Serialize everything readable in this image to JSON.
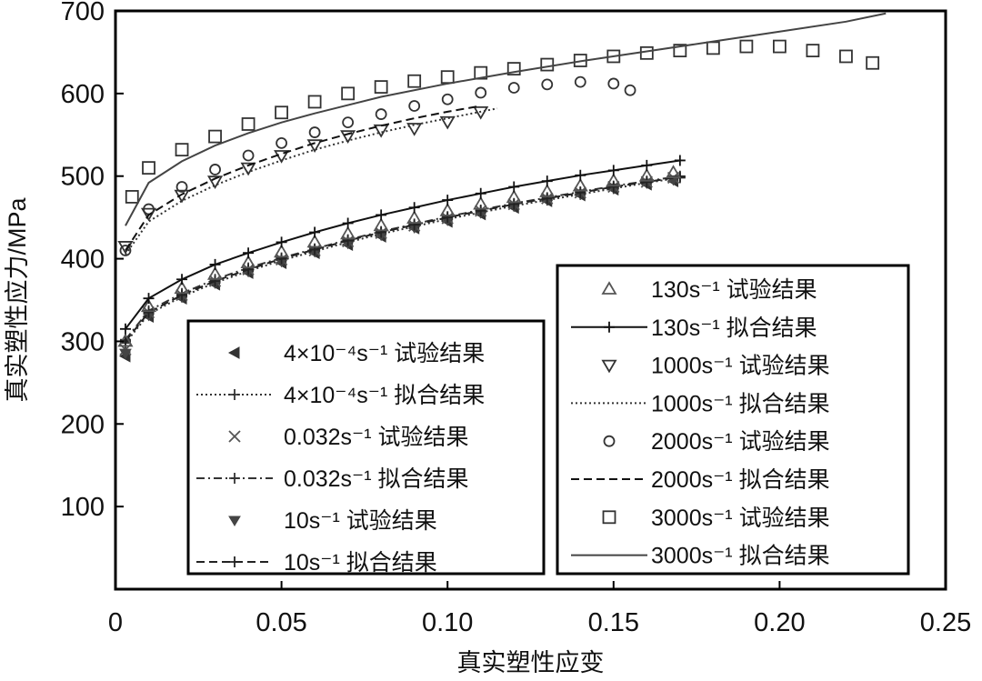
{
  "chart_data": {
    "type": "scatter",
    "title": "",
    "xlabel": "真实塑性应变",
    "ylabel": "真实塑性应力/MPa",
    "xlim": [
      0,
      0.25
    ],
    "ylim": [
      0,
      700
    ],
    "xticks": [
      {
        "value": 0,
        "label": "0"
      },
      {
        "value": 0.05,
        "label": "0.05"
      },
      {
        "value": 0.1,
        "label": "0.10"
      },
      {
        "value": 0.15,
        "label": "0.15"
      },
      {
        "value": 0.2,
        "label": "0.20"
      },
      {
        "value": 0.25,
        "label": "0.25"
      }
    ],
    "yticks": [
      {
        "value": 100,
        "label": "100"
      },
      {
        "value": 200,
        "label": "200"
      },
      {
        "value": 300,
        "label": "300"
      },
      {
        "value": 400,
        "label": "400"
      },
      {
        "value": 500,
        "label": "500"
      },
      {
        "value": 600,
        "label": "600"
      },
      {
        "value": 700,
        "label": "700"
      }
    ],
    "grid": false,
    "legends": [
      {
        "placement": "lower-center",
        "entries": [
          {
            "series": "s1e",
            "text": "4×10⁻⁴s⁻¹ 试验结果"
          },
          {
            "series": "s1f",
            "text": "4×10⁻⁴s⁻¹ 拟合结果"
          },
          {
            "series": "s2e",
            "text": "0.032s⁻¹ 试验结果"
          },
          {
            "series": "s2f",
            "text": "0.032s⁻¹ 拟合结果"
          },
          {
            "series": "s3e",
            "text": "10s⁻¹ 试验结果"
          },
          {
            "series": "s3f",
            "text": "10s⁻¹ 拟合结果"
          }
        ]
      },
      {
        "placement": "lower-right",
        "entries": [
          {
            "series": "s4e",
            "text": "130s⁻¹ 试验结果"
          },
          {
            "series": "s4f",
            "text": "130s⁻¹ 拟合结果"
          },
          {
            "series": "s5e",
            "text": "1000s⁻¹ 试验结果"
          },
          {
            "series": "s5f",
            "text": "1000s⁻¹ 拟合结果"
          },
          {
            "series": "s6e",
            "text": "2000s⁻¹ 试验结果"
          },
          {
            "series": "s6f",
            "text": "2000s⁻¹ 拟合结果"
          },
          {
            "series": "s7e",
            "text": "3000s⁻¹ 试验结果"
          },
          {
            "series": "s7f",
            "text": "3000s⁻¹ 拟合结果"
          }
        ]
      }
    ],
    "series": [
      {
        "id": "s1e",
        "marker": "triangle-left",
        "color": "#333333",
        "x": [
          0.003,
          0.01,
          0.02,
          0.03,
          0.04,
          0.05,
          0.06,
          0.07,
          0.08,
          0.09,
          0.1,
          0.11,
          0.12,
          0.13,
          0.14,
          0.15,
          0.16,
          0.168
        ],
        "y": [
          282,
          330,
          352,
          369,
          383,
          395,
          407,
          417,
          427,
          437,
          445,
          454,
          462,
          470,
          477,
          484,
          490,
          494
        ]
      },
      {
        "id": "s1f",
        "line": "dotted",
        "marker": "plus",
        "color": "#333333",
        "x": [
          0.003,
          0.01,
          0.02,
          0.03,
          0.04,
          0.05,
          0.06,
          0.07,
          0.08,
          0.09,
          0.1,
          0.11,
          0.12,
          0.13,
          0.14,
          0.15,
          0.16,
          0.17
        ],
        "y": [
          298,
          333,
          354,
          371,
          385,
          398,
          409,
          420,
          430,
          439,
          448,
          456,
          464,
          471,
          478,
          485,
          492,
          498
        ]
      },
      {
        "id": "s2e",
        "marker": "x",
        "color": "#555555",
        "x": [
          0.003,
          0.01,
          0.02,
          0.03,
          0.04,
          0.05,
          0.06,
          0.07,
          0.08,
          0.09,
          0.1,
          0.11,
          0.12,
          0.13,
          0.14,
          0.15,
          0.16,
          0.168
        ],
        "y": [
          290,
          335,
          356,
          373,
          387,
          399,
          410,
          421,
          431,
          440,
          449,
          458,
          466,
          473,
          480,
          487,
          493,
          498
        ]
      },
      {
        "id": "s2f",
        "line": "dashdot",
        "marker": "plus",
        "color": "#333333",
        "x": [
          0.003,
          0.01,
          0.02,
          0.03,
          0.04,
          0.05,
          0.06,
          0.07,
          0.08,
          0.09,
          0.1,
          0.11,
          0.12,
          0.13,
          0.14,
          0.15,
          0.16,
          0.17
        ],
        "y": [
          302,
          337,
          358,
          375,
          389,
          401,
          412,
          423,
          433,
          442,
          451,
          459,
          467,
          474,
          481,
          488,
          494,
          500
        ]
      },
      {
        "id": "s3e",
        "marker": "triangle-down",
        "color": "#444444",
        "x": [
          0.003,
          0.01,
          0.02,
          0.03,
          0.04,
          0.05,
          0.06,
          0.07,
          0.08,
          0.09,
          0.1,
          0.11,
          0.12,
          0.13,
          0.14,
          0.15,
          0.16,
          0.168
        ],
        "y": [
          286,
          332,
          354,
          371,
          385,
          397,
          409,
          419,
          429,
          438,
          447,
          456,
          464,
          472,
          479,
          486,
          492,
          496
        ]
      },
      {
        "id": "s3f",
        "line": "dashed",
        "marker": "plus",
        "color": "#222222",
        "x": [
          0.003,
          0.01,
          0.02,
          0.03,
          0.04,
          0.05,
          0.06,
          0.07,
          0.08,
          0.09,
          0.1,
          0.11,
          0.12,
          0.13,
          0.14,
          0.15,
          0.16,
          0.17
        ],
        "y": [
          300,
          335,
          356,
          373,
          387,
          400,
          411,
          422,
          432,
          441,
          450,
          458,
          466,
          473,
          480,
          487,
          493,
          499
        ]
      },
      {
        "id": "s4e",
        "marker": "triangle-up",
        "color": "#555555",
        "x": [
          0.003,
          0.01,
          0.02,
          0.03,
          0.04,
          0.05,
          0.06,
          0.07,
          0.08,
          0.09,
          0.1,
          0.11,
          0.12,
          0.13,
          0.14,
          0.15,
          0.16,
          0.168
        ],
        "y": [
          300,
          342,
          364,
          381,
          395,
          408,
          420,
          430,
          440,
          449,
          458,
          466,
          474,
          481,
          488,
          494,
          500,
          504
        ]
      },
      {
        "id": "s4f",
        "line": "solid",
        "marker": "plus",
        "color": "#111111",
        "x": [
          0.003,
          0.01,
          0.02,
          0.03,
          0.04,
          0.05,
          0.06,
          0.07,
          0.08,
          0.09,
          0.1,
          0.11,
          0.12,
          0.13,
          0.14,
          0.15,
          0.16,
          0.17
        ],
        "y": [
          315,
          352,
          375,
          393,
          407,
          420,
          432,
          443,
          453,
          462,
          471,
          479,
          487,
          494,
          501,
          507,
          513,
          519
        ]
      },
      {
        "id": "s5e",
        "marker": "triangle-down-open",
        "color": "#333333",
        "x": [
          0.003,
          0.01,
          0.02,
          0.03,
          0.04,
          0.05,
          0.06,
          0.07,
          0.08,
          0.09,
          0.1,
          0.11
        ],
        "y": [
          415,
          455,
          477,
          494,
          510,
          525,
          538,
          549,
          556,
          558,
          566,
          578
        ]
      },
      {
        "id": "s5f",
        "line": "dotted",
        "color": "#333333",
        "x": [
          0.003,
          0.01,
          0.02,
          0.03,
          0.04,
          0.05,
          0.06,
          0.07,
          0.08,
          0.09,
          0.1,
          0.11,
          0.115
        ],
        "y": [
          405,
          445,
          470,
          489,
          505,
          519,
          532,
          543,
          553,
          562,
          570,
          578,
          582
        ]
      },
      {
        "id": "s6e",
        "marker": "circle-open",
        "color": "#333333",
        "x": [
          0.003,
          0.01,
          0.02,
          0.03,
          0.04,
          0.05,
          0.06,
          0.07,
          0.08,
          0.09,
          0.1,
          0.11,
          0.12,
          0.13,
          0.14,
          0.15,
          0.155
        ],
        "y": [
          410,
          460,
          487,
          508,
          525,
          540,
          553,
          565,
          575,
          585,
          593,
          601,
          607,
          611,
          614,
          612,
          604
        ]
      },
      {
        "id": "s6f",
        "line": "dashed",
        "color": "#111111",
        "x": [
          0.003,
          0.01,
          0.02,
          0.03,
          0.04,
          0.05,
          0.06,
          0.07,
          0.08,
          0.09,
          0.1,
          0.11
        ],
        "y": [
          410,
          453,
          478,
          497,
          513,
          527,
          540,
          551,
          561,
          570,
          578,
          585
        ]
      },
      {
        "id": "s7e",
        "marker": "square-open",
        "color": "#333333",
        "x": [
          0.005,
          0.01,
          0.02,
          0.03,
          0.04,
          0.05,
          0.06,
          0.07,
          0.08,
          0.09,
          0.1,
          0.11,
          0.12,
          0.13,
          0.14,
          0.15,
          0.16,
          0.17,
          0.18,
          0.19,
          0.2,
          0.21,
          0.22,
          0.228
        ],
        "y": [
          475,
          510,
          532,
          548,
          563,
          577,
          590,
          600,
          608,
          615,
          620,
          625,
          630,
          635,
          640,
          645,
          649,
          652,
          655,
          657,
          657,
          652,
          645,
          637
        ]
      },
      {
        "id": "s7f",
        "line": "solid",
        "color": "#444444",
        "x": [
          0.003,
          0.01,
          0.02,
          0.03,
          0.04,
          0.05,
          0.06,
          0.08,
          0.1,
          0.12,
          0.14,
          0.16,
          0.18,
          0.2,
          0.22,
          0.232
        ],
        "y": [
          440,
          492,
          518,
          537,
          552,
          565,
          576,
          596,
          612,
          626,
          639,
          651,
          663,
          675,
          687,
          697
        ]
      }
    ]
  }
}
